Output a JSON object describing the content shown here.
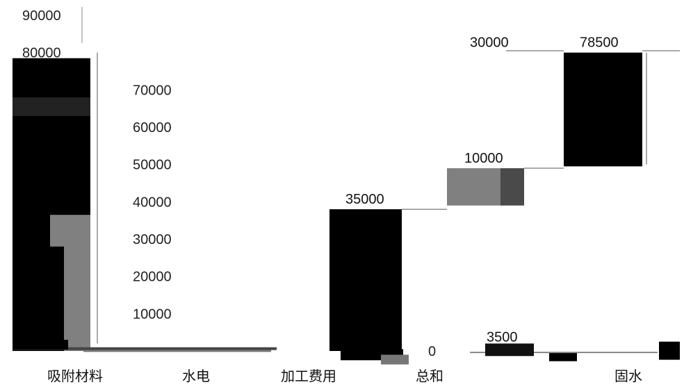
{
  "chart_data": {
    "type": "bar",
    "subtype": "waterfall",
    "categories": [
      "吸附材料",
      "水电",
      "加工费用",
      "总和",
      "固水"
    ],
    "values": [
      3500,
      10000,
      30000,
      35000,
      78500
    ],
    "y_ticks": [
      90000,
      80000,
      70000,
      60000,
      50000,
      40000,
      30000,
      20000,
      10000,
      0
    ],
    "ylim": [
      0,
      90000
    ],
    "grid": false,
    "legend": "none",
    "colors": {
      "bar": "#000000",
      "increment_light": "#808080",
      "increment_dark": "#4a4a4a",
      "tick_highlight": "#1e88c8",
      "axis": "#888888"
    }
  }
}
